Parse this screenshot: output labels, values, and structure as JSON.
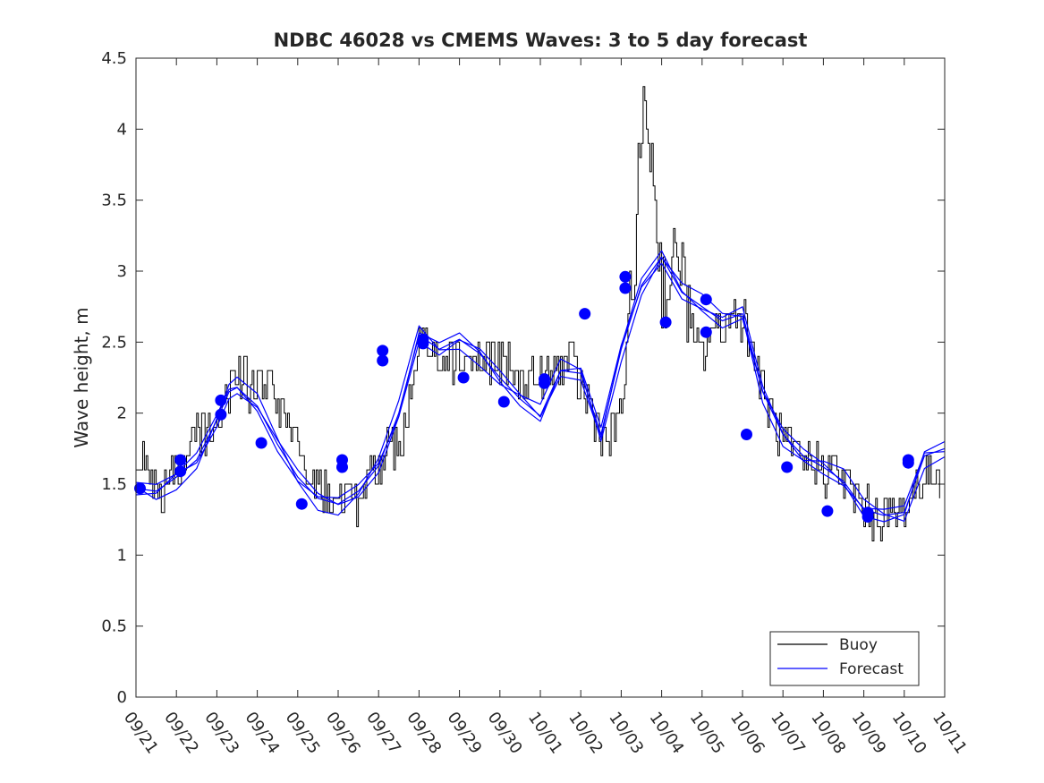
{
  "chart_data": {
    "type": "line",
    "title": "NDBC 46028 vs CMEMS Waves: 3 to 5 day forecast",
    "xlabel": "",
    "ylabel": "Wave height, m",
    "x_tick_labels": [
      "09/21",
      "09/22",
      "09/23",
      "09/24",
      "09/25",
      "09/26",
      "09/27",
      "09/28",
      "09/29",
      "09/30",
      "10/01",
      "10/02",
      "10/03",
      "10/04",
      "10/05",
      "10/06",
      "10/07",
      "10/08",
      "10/09",
      "10/10",
      "10/11"
    ],
    "y_tick_labels": [
      "0",
      "0.5",
      "1",
      "1.5",
      "2",
      "2.5",
      "3",
      "3.5",
      "4",
      "4.5"
    ],
    "xlim_days": [
      0,
      20
    ],
    "ylim": [
      0,
      4.5
    ],
    "grid": false,
    "legend_position": "bottom-right",
    "colors": {
      "buoy": "#000000",
      "forecast": "#0000ff",
      "axes": "#262626"
    },
    "legend": [
      {
        "label": "Buoy",
        "color": "#000000"
      },
      {
        "label": "Forecast",
        "color": "#0000ff"
      }
    ],
    "buoy_anchors": [
      [
        0.0,
        1.7
      ],
      [
        0.3,
        1.65
      ],
      [
        0.5,
        1.4
      ],
      [
        0.8,
        1.5
      ],
      [
        1.0,
        1.6
      ],
      [
        1.3,
        1.75
      ],
      [
        1.6,
        1.85
      ],
      [
        2.0,
        1.9
      ],
      [
        2.2,
        2.15
      ],
      [
        2.4,
        2.2
      ],
      [
        2.6,
        2.25
      ],
      [
        2.8,
        2.2
      ],
      [
        3.1,
        2.2
      ],
      [
        3.3,
        2.2
      ],
      [
        3.6,
        1.95
      ],
      [
        3.9,
        1.75
      ],
      [
        4.2,
        1.6
      ],
      [
        4.5,
        1.5
      ],
      [
        4.8,
        1.4
      ],
      [
        5.0,
        1.35
      ],
      [
        5.2,
        1.35
      ],
      [
        5.5,
        1.35
      ],
      [
        5.7,
        1.5
      ],
      [
        6.0,
        1.65
      ],
      [
        6.3,
        1.75
      ],
      [
        6.6,
        1.9
      ],
      [
        6.8,
        2.1
      ],
      [
        7.0,
        2.6
      ],
      [
        7.3,
        2.4
      ],
      [
        7.6,
        2.4
      ],
      [
        7.9,
        2.4
      ],
      [
        8.2,
        2.4
      ],
      [
        8.5,
        2.35
      ],
      [
        8.8,
        2.4
      ],
      [
        9.2,
        2.3
      ],
      [
        9.5,
        2.2
      ],
      [
        9.8,
        2.25
      ],
      [
        10.1,
        2.2
      ],
      [
        10.4,
        2.3
      ],
      [
        10.7,
        2.4
      ],
      [
        11.0,
        2.2
      ],
      [
        11.3,
        2.0
      ],
      [
        11.6,
        1.8
      ],
      [
        11.9,
        1.9
      ],
      [
        12.1,
        2.3
      ],
      [
        12.3,
        3.0
      ],
      [
        12.45,
        3.8
      ],
      [
        12.6,
        4.2
      ],
      [
        12.8,
        3.6
      ],
      [
        13.0,
        2.9
      ],
      [
        13.2,
        2.9
      ],
      [
        13.4,
        3.2
      ],
      [
        13.6,
        2.8
      ],
      [
        13.8,
        2.45
      ],
      [
        14.0,
        2.4
      ],
      [
        14.2,
        2.6
      ],
      [
        14.5,
        2.6
      ],
      [
        14.8,
        2.7
      ],
      [
        15.0,
        2.7
      ],
      [
        15.2,
        2.5
      ],
      [
        15.5,
        2.15
      ],
      [
        15.8,
        1.9
      ],
      [
        16.1,
        1.75
      ],
      [
        16.4,
        1.65
      ],
      [
        16.7,
        1.65
      ],
      [
        17.0,
        1.6
      ],
      [
        17.3,
        1.6
      ],
      [
        17.6,
        1.5
      ],
      [
        17.9,
        1.4
      ],
      [
        18.1,
        1.3
      ],
      [
        18.4,
        1.25
      ],
      [
        18.7,
        1.3
      ],
      [
        19.0,
        1.3
      ],
      [
        19.3,
        1.5
      ],
      [
        19.6,
        1.55
      ],
      [
        19.9,
        1.6
      ]
    ],
    "series": [
      {
        "name": "Forecast",
        "color": "#0000ff",
        "x": [
          0.0,
          0.5,
          1.0,
          1.5,
          2.0,
          2.3,
          2.5,
          3.0,
          3.5,
          4.0,
          4.5,
          5.0,
          5.5,
          6.0,
          6.5,
          7.0,
          7.5,
          8.0,
          8.5,
          9.0,
          9.5,
          10.0,
          10.5,
          11.0,
          11.5,
          12.0,
          12.5,
          13.0,
          13.5,
          14.0,
          14.5,
          15.0,
          15.5,
          16.0,
          16.5,
          17.0,
          17.5,
          18.0,
          18.5,
          19.0,
          19.5,
          20.0
        ],
        "values": [
          1.47,
          1.45,
          1.55,
          1.67,
          1.95,
          2.15,
          2.18,
          2.05,
          1.78,
          1.55,
          1.4,
          1.36,
          1.45,
          1.63,
          2.0,
          2.55,
          2.45,
          2.52,
          2.42,
          2.25,
          2.1,
          1.98,
          2.3,
          2.28,
          1.85,
          2.45,
          2.9,
          3.1,
          2.85,
          2.75,
          2.65,
          2.7,
          2.15,
          1.85,
          1.7,
          1.62,
          1.52,
          1.32,
          1.28,
          1.3,
          1.7,
          1.75
        ]
      }
    ],
    "forecast_markers": [
      [
        0.1,
        1.47
      ],
      [
        1.1,
        1.59
      ],
      [
        1.1,
        1.67
      ],
      [
        2.1,
        1.99
      ],
      [
        2.1,
        2.09
      ],
      [
        3.1,
        1.79
      ],
      [
        4.1,
        1.36
      ],
      [
        5.1,
        1.62
      ],
      [
        5.1,
        1.67
      ],
      [
        6.1,
        2.37
      ],
      [
        6.1,
        2.44
      ],
      [
        7.1,
        2.49
      ],
      [
        7.1,
        2.52
      ],
      [
        8.1,
        2.25
      ],
      [
        9.1,
        2.08
      ],
      [
        10.1,
        2.21
      ],
      [
        10.1,
        2.24
      ],
      [
        11.1,
        2.7
      ],
      [
        12.1,
        2.88
      ],
      [
        12.1,
        2.96
      ],
      [
        13.1,
        2.64
      ],
      [
        14.1,
        2.57
      ],
      [
        14.1,
        2.8
      ],
      [
        15.1,
        1.85
      ],
      [
        16.1,
        1.62
      ],
      [
        17.1,
        1.31
      ],
      [
        18.1,
        1.27
      ],
      [
        18.1,
        1.3
      ],
      [
        19.1,
        1.65
      ],
      [
        19.1,
        1.67
      ]
    ]
  }
}
